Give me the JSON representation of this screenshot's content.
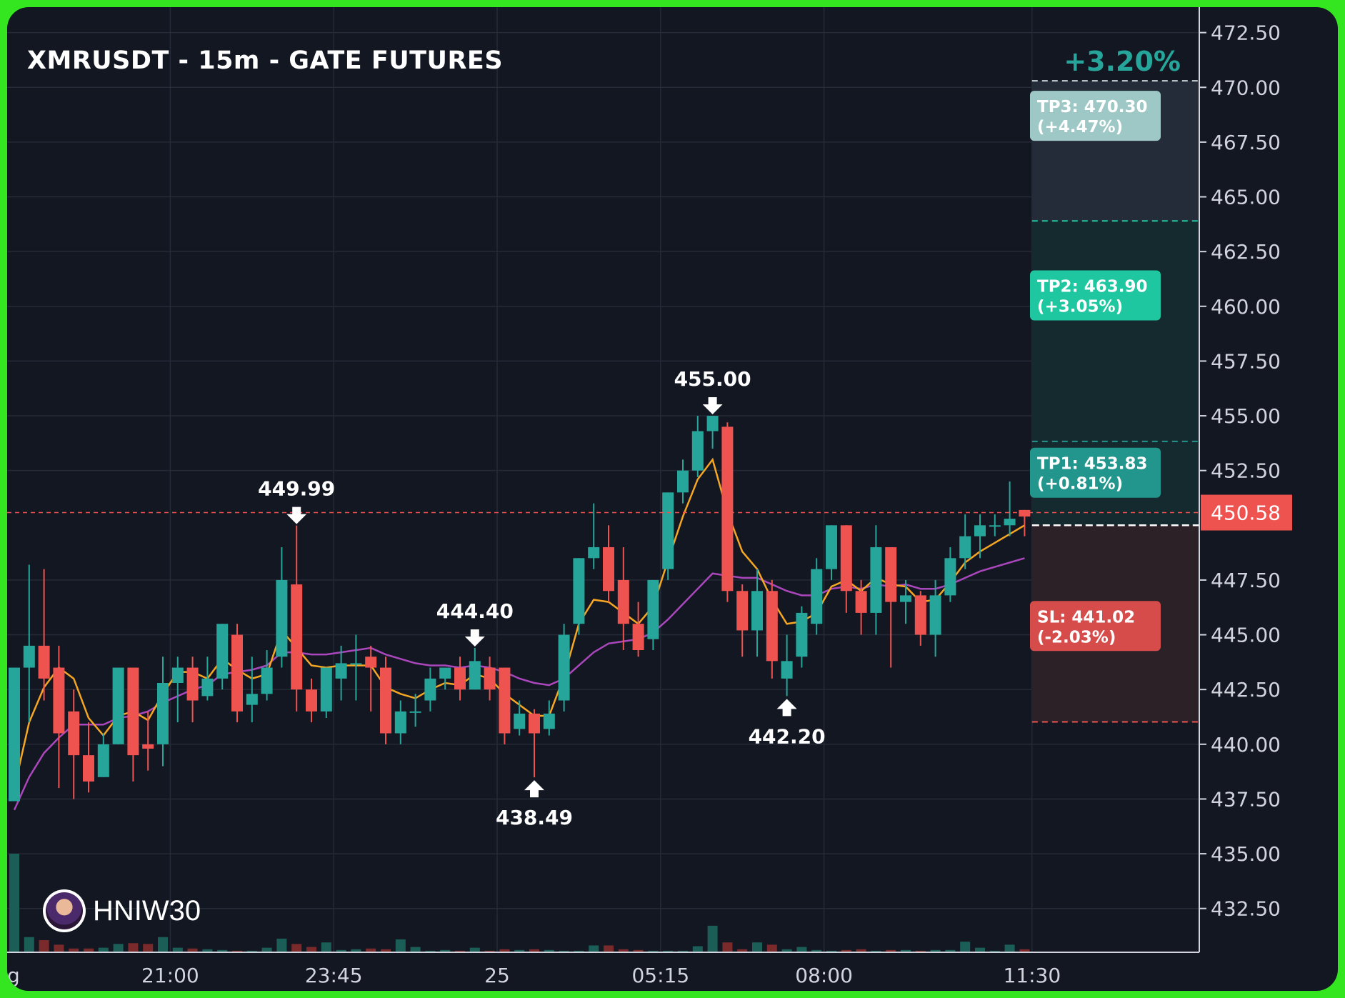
{
  "header": {
    "title": "XMRUSDT - 15m - GATE FUTURES",
    "change_pct": "+3.20%"
  },
  "brand": {
    "name": "HNIW30",
    "avatar_icon": "avatar-icon"
  },
  "colors": {
    "background": "#131722",
    "frame": "#33e61f",
    "up": "#26a69a",
    "down": "#ef5350",
    "ma_fast": "#f5a623",
    "ma_slow": "#ab47bc",
    "tp3_label": "#9ec8c5",
    "tp2_label": "#1ec7a0",
    "tp1_label": "#22968c",
    "sl_label": "#d64c4a"
  },
  "chart_data": {
    "type": "candlestick",
    "title": "XMRUSDT - 15m - GATE FUTURES",
    "ylim": [
      430.5,
      473.5
    ],
    "y_ticks": [
      472.5,
      470.0,
      467.5,
      465.0,
      462.5,
      460.0,
      457.5,
      455.0,
      452.5,
      450.58,
      447.5,
      445.0,
      442.5,
      440.0,
      437.5,
      435.0,
      432.5
    ],
    "y_tick_labels": [
      "472.50",
      "470.00",
      "467.50",
      "465.00",
      "462.50",
      "460.00",
      "457.50",
      "455.00",
      "452.50",
      "450.58",
      "447.50",
      "445.00",
      "442.50",
      "440.00",
      "437.50",
      "435.00",
      "432.50"
    ],
    "x_tick_labels": [
      {
        "label": "g",
        "bar": -0.4
      },
      {
        "label": "21:00",
        "bar": 10.5
      },
      {
        "label": "23:45",
        "bar": 21.5
      },
      {
        "label": "25",
        "bar": 32.5
      },
      {
        "label": "05:15",
        "bar": 43.5
      },
      {
        "label": "08:00",
        "bar": 54.5
      },
      {
        "label": "11:30",
        "bar": 68.5
      }
    ],
    "grid": true,
    "current_price": {
      "value": 450.58,
      "label": "450.58"
    },
    "candles": [
      [
        437.4,
        443.5,
        437.4,
        443.5,
        13.0
      ],
      [
        443.5,
        444.5,
        441.0,
        448.2,
        2.0
      ],
      [
        444.5,
        443.0,
        442.0,
        448.0,
        1.6
      ],
      [
        443.5,
        440.5,
        438.0,
        444.5,
        1.0
      ],
      [
        441.5,
        439.5,
        437.5,
        442.5,
        0.5
      ],
      [
        439.5,
        438.3,
        437.8,
        441.0,
        0.5
      ],
      [
        438.5,
        440.0,
        438.5,
        440.5,
        0.6
      ],
      [
        440.0,
        443.5,
        440.0,
        443.5,
        1.1
      ],
      [
        443.5,
        439.5,
        438.3,
        443.5,
        1.2
      ],
      [
        440.0,
        439.8,
        438.8,
        441.5,
        1.1
      ],
      [
        440.0,
        442.8,
        439.0,
        444.0,
        2.0
      ],
      [
        442.8,
        443.5,
        441.0,
        444.0,
        0.6
      ],
      [
        443.5,
        442.0,
        441.0,
        444.0,
        0.5
      ],
      [
        442.2,
        443.0,
        442.0,
        444.0,
        0.4
      ],
      [
        443.0,
        445.5,
        442.5,
        445.5,
        0.3
      ],
      [
        445.0,
        441.5,
        441.0,
        445.5,
        0.2
      ],
      [
        441.8,
        442.3,
        441.0,
        444.0,
        0.2
      ],
      [
        442.3,
        443.5,
        442.0,
        444.3,
        0.6
      ],
      [
        444.0,
        447.5,
        443.5,
        449.0,
        1.8
      ],
      [
        447.3,
        442.5,
        441.5,
        449.99,
        1.1
      ],
      [
        442.5,
        441.5,
        441.0,
        443.0,
        0.7
      ],
      [
        441.5,
        443.5,
        441.2,
        443.5,
        1.3
      ],
      [
        443.0,
        443.7,
        442.0,
        444.5,
        0.3
      ],
      [
        443.7,
        443.7,
        442.0,
        445.0,
        0.4
      ],
      [
        444.0,
        443.5,
        441.5,
        444.5,
        0.5
      ],
      [
        443.5,
        440.5,
        440.0,
        444.0,
        0.4
      ],
      [
        440.5,
        441.5,
        440.0,
        442.0,
        1.7
      ],
      [
        441.5,
        441.5,
        440.8,
        442.3,
        0.7
      ],
      [
        442.0,
        443.0,
        441.5,
        443.5,
        0.2
      ],
      [
        443.0,
        443.5,
        442.5,
        443.5,
        0.3
      ],
      [
        443.5,
        442.5,
        442.0,
        444.0,
        0.2
      ],
      [
        442.5,
        443.8,
        442.5,
        444.4,
        0.6
      ],
      [
        443.5,
        442.5,
        442.0,
        444.0,
        0.2
      ],
      [
        443.5,
        440.5,
        440.0,
        443.5,
        0.4
      ],
      [
        440.7,
        441.4,
        440.4,
        442.0,
        0.3
      ],
      [
        441.4,
        440.5,
        438.49,
        441.6,
        0.4
      ],
      [
        440.7,
        441.4,
        440.4,
        442.0,
        0.3
      ],
      [
        442.0,
        445.0,
        441.5,
        445.5,
        0.2
      ],
      [
        445.5,
        448.5,
        445.0,
        448.5,
        0.2
      ],
      [
        448.5,
        449.0,
        448.0,
        451.0,
        0.9
      ],
      [
        449.0,
        447.0,
        446.5,
        450.0,
        0.9
      ],
      [
        447.5,
        445.5,
        444.3,
        449.0,
        0.4
      ],
      [
        445.5,
        444.3,
        444.0,
        446.5,
        0.3
      ],
      [
        444.8,
        447.5,
        444.3,
        447.5,
        0.2
      ],
      [
        448.0,
        451.5,
        447.5,
        451.5,
        0.2
      ],
      [
        451.5,
        452.5,
        451.0,
        453.0,
        0.2
      ],
      [
        452.5,
        454.3,
        452.2,
        455.0,
        0.8
      ],
      [
        454.3,
        455.0,
        453.5,
        455.0,
        3.5
      ],
      [
        454.5,
        447.0,
        446.5,
        454.7,
        1.3
      ],
      [
        447.0,
        445.2,
        444.0,
        447.3,
        0.4
      ],
      [
        445.2,
        447.0,
        444.0,
        448.0,
        1.3
      ],
      [
        447.0,
        443.8,
        443.0,
        447.5,
        1.0
      ],
      [
        443.0,
        443.8,
        442.2,
        445.0,
        0.4
      ],
      [
        444.0,
        446.0,
        443.5,
        446.3,
        0.7
      ],
      [
        445.5,
        448.0,
        445.0,
        448.5,
        0.3
      ],
      [
        448.0,
        450.0,
        447.5,
        450.0,
        0.2
      ],
      [
        450.0,
        447.0,
        446.0,
        450.0,
        0.3
      ],
      [
        447.0,
        446.0,
        445.0,
        447.5,
        0.4
      ],
      [
        446.0,
        449.0,
        445.0,
        450.0,
        0.2
      ],
      [
        449.0,
        446.5,
        443.5,
        449.0,
        0.3
      ],
      [
        446.5,
        446.8,
        445.5,
        447.5,
        0.3
      ],
      [
        446.8,
        445.0,
        444.5,
        447.0,
        0.2
      ],
      [
        445.0,
        446.8,
        444.0,
        447.5,
        0.3
      ],
      [
        446.8,
        448.5,
        446.5,
        449.0,
        0.3
      ],
      [
        448.5,
        449.5,
        448.0,
        450.5,
        1.4
      ],
      [
        449.5,
        450.0,
        448.5,
        450.5,
        0.6
      ],
      [
        450.0,
        450.0,
        449.5,
        450.5,
        0.2
      ],
      [
        450.0,
        450.3,
        449.5,
        452.0,
        1.0
      ],
      [
        450.7,
        450.4,
        449.5,
        450.7,
        0.4
      ]
    ],
    "ma_fast": [
      438.0,
      441.0,
      442.6,
      443.5,
      443.0,
      441.2,
      440.4,
      441.3,
      441.5,
      441.1,
      442.3,
      443.3,
      443.3,
      443.0,
      443.9,
      443.4,
      443.0,
      443.2,
      445.2,
      444.4,
      443.6,
      443.5,
      443.6,
      443.6,
      443.6,
      442.6,
      442.3,
      442.1,
      442.5,
      442.8,
      442.7,
      443.2,
      443.0,
      442.3,
      441.8,
      441.3,
      441.3,
      443.1,
      445.5,
      446.6,
      446.5,
      446.0,
      445.5,
      446.3,
      448.4,
      450.4,
      452.1,
      453.0,
      450.6,
      448.8,
      448.0,
      446.6,
      445.5,
      445.6,
      446.0,
      447.2,
      447.5,
      447.0,
      447.6,
      447.3,
      447.2,
      446.5,
      446.6,
      447.4,
      448.3,
      448.8,
      449.2,
      449.6,
      450.0
    ],
    "ma_slow": [
      437.0,
      438.5,
      439.6,
      440.3,
      440.9,
      440.9,
      440.9,
      441.2,
      441.3,
      441.5,
      441.9,
      442.2,
      442.5,
      442.7,
      443.2,
      443.3,
      443.4,
      443.6,
      444.2,
      444.2,
      444.1,
      444.1,
      444.2,
      444.3,
      444.4,
      444.1,
      443.9,
      443.7,
      443.6,
      443.6,
      443.5,
      443.6,
      443.5,
      443.3,
      443.0,
      442.8,
      442.7,
      443.0,
      443.6,
      444.2,
      444.6,
      444.7,
      444.8,
      445.1,
      445.7,
      446.4,
      447.1,
      447.8,
      447.7,
      447.6,
      447.6,
      447.3,
      447.0,
      446.8,
      446.8,
      447.1,
      447.2,
      447.1,
      447.3,
      447.2,
      447.3,
      447.1,
      447.1,
      447.3,
      447.6,
      447.9,
      448.1,
      448.3,
      448.5
    ]
  },
  "markers": [
    {
      "label": "449.99",
      "bar": 19,
      "price": 449.99,
      "dir": "down"
    },
    {
      "label": "444.40",
      "bar": 31,
      "price": 444.4,
      "dir": "down"
    },
    {
      "label": "455.00",
      "bar": 47,
      "price": 455.0,
      "dir": "down"
    },
    {
      "label": "438.49",
      "bar": 35,
      "price": 438.49,
      "dir": "up"
    },
    {
      "label": "442.20",
      "bar": 52,
      "price": 442.2,
      "dir": "up"
    }
  ],
  "levels": {
    "tp3": {
      "price": 470.3,
      "line1": "TP3: 470.30",
      "line2": "(+4.47%)"
    },
    "tp2": {
      "price": 463.9,
      "line1": "TP2: 463.90",
      "line2": "(+3.05%)"
    },
    "tp1": {
      "price": 453.83,
      "line1": "TP1: 453.83",
      "line2": "(+0.81%)"
    },
    "entry": {
      "price": 450.0
    },
    "sl": {
      "price": 441.02,
      "line1": "SL: 441.02",
      "line2": "(-2.03%)"
    }
  }
}
